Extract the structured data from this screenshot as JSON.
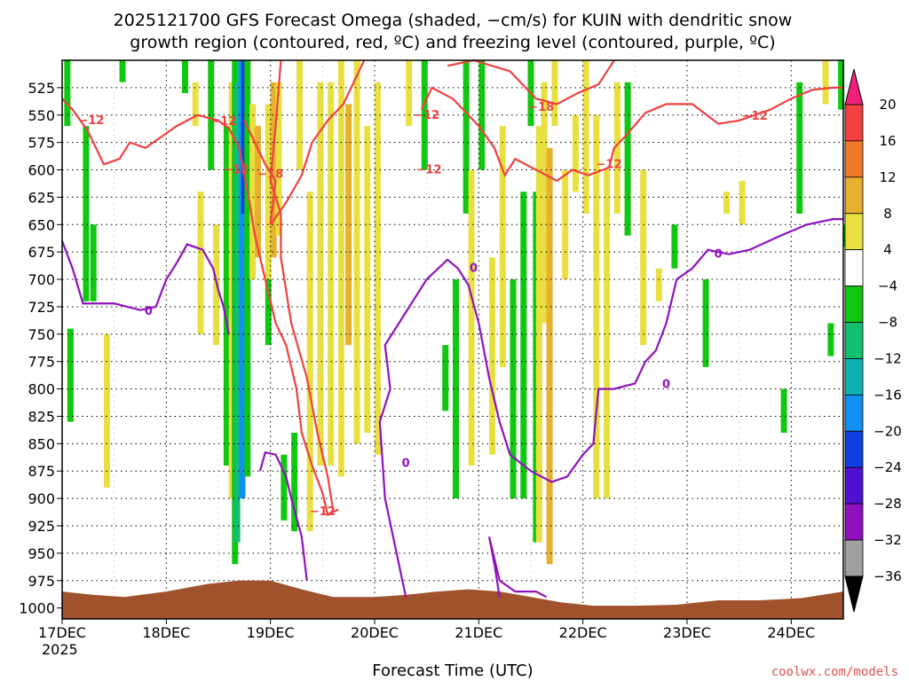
{
  "chart_data": {
    "type": "heatmap",
    "title_line1": "2025121700 GFS Forecast Omega (shaded, −cm/s) for KUIN with dendritic snow",
    "title_line2": "growth region (contoured, red, ºC) and freezing level (contoured, purple, ºC)",
    "xlabel": "Forecast Time (UTC)",
    "credit": "coolwx.com/models",
    "x_ticks": [
      "17DEC",
      "18DEC",
      "19DEC",
      "20DEC",
      "21DEC",
      "22DEC",
      "23DEC",
      "24DEC"
    ],
    "x_year": "2025",
    "y_ticks": [
      525,
      550,
      575,
      600,
      625,
      650,
      675,
      700,
      725,
      750,
      775,
      800,
      825,
      850,
      875,
      900,
      925,
      950,
      975,
      1000
    ],
    "y_range_hpa": [
      500,
      1010
    ],
    "x_range_days": [
      0,
      7.5
    ],
    "grid": true,
    "colorbar": {
      "labels": [
        "20",
        "16",
        "12",
        "8",
        "4",
        "−4",
        "−8",
        "−12",
        "−16",
        "−20",
        "−24",
        "−28",
        "−32",
        "−36"
      ],
      "colors": [
        "#f0207a",
        "#f04040",
        "#f07a28",
        "#e8b030",
        "#e8e040",
        "#ffffff",
        "#10c810",
        "#10c070",
        "#10b0b0",
        "#1090f0",
        "#1040e0",
        "#5010d0",
        "#9010c0",
        "#a0a0a0",
        "#000000"
      ]
    },
    "contour_labels": [
      {
        "text": "−12",
        "color": "#f04040",
        "x": 0.28,
        "p": 555
      },
      {
        "text": "−12",
        "color": "#f04040",
        "x": 1.55,
        "p": 556
      },
      {
        "text": "−18",
        "color": "#f04040",
        "x": 2.0,
        "p": 604
      },
      {
        "text": "−12",
        "color": "#f04040",
        "x": 1.67,
        "p": 600
      },
      {
        "text": "−12",
        "color": "#f04040",
        "x": 3.52,
        "p": 600
      },
      {
        "text": "−12",
        "color": "#f04040",
        "x": 2.5,
        "p": 912
      },
      {
        "text": "−12",
        "color": "#f04040",
        "x": 3.5,
        "p": 550
      },
      {
        "text": "−18",
        "color": "#f04040",
        "x": 4.6,
        "p": 543
      },
      {
        "text": "−12",
        "color": "#f04040",
        "x": 5.25,
        "p": 595
      },
      {
        "text": "−12",
        "color": "#f04040",
        "x": 6.65,
        "p": 551
      },
      {
        "text": "0",
        "color": "#9010c0",
        "x": 0.83,
        "p": 729
      },
      {
        "text": "0",
        "color": "#9010c0",
        "x": 3.95,
        "p": 690
      },
      {
        "text": "0",
        "color": "#9010c0",
        "x": 3.3,
        "p": 868
      },
      {
        "text": "0",
        "color": "#9010c0",
        "x": 5.8,
        "p": 796
      },
      {
        "text": "0",
        "color": "#9010c0",
        "x": 6.3,
        "p": 677
      }
    ],
    "freezing_level": [
      [
        0,
        665
      ],
      [
        0.1,
        690
      ],
      [
        0.2,
        722
      ],
      [
        0.5,
        722
      ],
      [
        0.75,
        728
      ],
      [
        0.9,
        725
      ],
      [
        1.0,
        700
      ],
      [
        1.1,
        685
      ],
      [
        1.2,
        668
      ],
      [
        1.35,
        673
      ],
      [
        1.45,
        690
      ],
      [
        1.5,
        710
      ],
      [
        1.55,
        725
      ],
      [
        1.6,
        750
      ]
    ],
    "freezing_level_2": [
      [
        1.9,
        875
      ],
      [
        1.95,
        858
      ],
      [
        2.05,
        860
      ],
      [
        2.15,
        880
      ],
      [
        2.2,
        900
      ],
      [
        2.3,
        935
      ],
      [
        2.35,
        975
      ]
    ],
    "freezing_level_3": [
      [
        3.3,
        990
      ],
      [
        3.2,
        945
      ],
      [
        3.1,
        900
      ],
      [
        3.05,
        830
      ],
      [
        3.15,
        800
      ],
      [
        3.1,
        760
      ],
      [
        3.3,
        730
      ],
      [
        3.5,
        700
      ],
      [
        3.7,
        682
      ],
      [
        3.8,
        690
      ],
      [
        3.9,
        705
      ],
      [
        4.0,
        740
      ],
      [
        4.1,
        790
      ],
      [
        4.2,
        830
      ],
      [
        4.3,
        860
      ],
      [
        4.5,
        875
      ],
      [
        4.7,
        885
      ],
      [
        4.85,
        880
      ],
      [
        5.0,
        860
      ],
      [
        5.1,
        850
      ],
      [
        5.15,
        800
      ],
      [
        5.3,
        800
      ],
      [
        5.5,
        795
      ],
      [
        5.6,
        775
      ],
      [
        5.7,
        765
      ],
      [
        5.8,
        740
      ],
      [
        5.9,
        700
      ],
      [
        6.05,
        690
      ],
      [
        6.2,
        673
      ],
      [
        6.4,
        677
      ],
      [
        6.6,
        673
      ],
      [
        6.9,
        660
      ],
      [
        7.15,
        650
      ],
      [
        7.4,
        645
      ],
      [
        7.5,
        645
      ]
    ],
    "freezing_level_4": [
      [
        4.2,
        990
      ],
      [
        4.15,
        960
      ],
      [
        4.1,
        935
      ],
      [
        4.2,
        975
      ],
      [
        4.35,
        985
      ],
      [
        4.55,
        985
      ],
      [
        4.65,
        990
      ]
    ],
    "dgz_contour_1": [
      [
        0,
        535
      ],
      [
        0.1,
        545
      ],
      [
        0.25,
        565
      ],
      [
        0.4,
        595
      ],
      [
        0.55,
        590
      ],
      [
        0.65,
        575
      ],
      [
        0.8,
        580
      ],
      [
        0.95,
        570
      ],
      [
        1.1,
        560
      ],
      [
        1.3,
        550
      ],
      [
        1.5,
        555
      ],
      [
        1.6,
        562
      ],
      [
        1.7,
        580
      ],
      [
        1.8,
        630
      ],
      [
        1.85,
        660
      ],
      [
        1.95,
        700
      ],
      [
        2.05,
        740
      ],
      [
        2.15,
        760
      ],
      [
        2.25,
        800
      ],
      [
        2.3,
        840
      ],
      [
        2.4,
        870
      ],
      [
        2.5,
        895
      ],
      [
        2.55,
        915
      ],
      [
        2.65,
        910
      ]
    ],
    "dgz_contour_2": [
      [
        1.75,
        555
      ],
      [
        1.85,
        575
      ],
      [
        1.95,
        595
      ],
      [
        2.05,
        610
      ],
      [
        2.0,
        650
      ],
      [
        2.15,
        630
      ],
      [
        2.3,
        605
      ],
      [
        2.4,
        575
      ],
      [
        2.55,
        555
      ],
      [
        2.7,
        540
      ],
      [
        2.8,
        520
      ],
      [
        2.9,
        500
      ]
    ],
    "dgz_contour_3": [
      [
        2.1,
        500
      ],
      [
        2.05,
        560
      ],
      [
        2.0,
        610
      ],
      [
        2.1,
        640
      ],
      [
        2.1,
        680
      ],
      [
        2.2,
        740
      ],
      [
        2.35,
        790
      ],
      [
        2.45,
        840
      ],
      [
        2.55,
        880
      ],
      [
        2.6,
        910
      ]
    ],
    "dgz_contour_4": [
      [
        3.45,
        545
      ],
      [
        3.55,
        525
      ],
      [
        3.75,
        535
      ],
      [
        4.0,
        560
      ],
      [
        4.15,
        580
      ],
      [
        4.25,
        605
      ],
      [
        4.35,
        590
      ],
      [
        4.55,
        600
      ],
      [
        4.75,
        610
      ],
      [
        4.9,
        600
      ],
      [
        5.05,
        605
      ],
      [
        5.25,
        598
      ],
      [
        5.3,
        580
      ],
      [
        5.4,
        570
      ],
      [
        5.6,
        548
      ],
      [
        5.8,
        540
      ],
      [
        6.05,
        540
      ],
      [
        6.3,
        558
      ],
      [
        6.5,
        555
      ],
      [
        6.8,
        545
      ],
      [
        7.0,
        535
      ],
      [
        7.2,
        527
      ],
      [
        7.4,
        525
      ],
      [
        7.5,
        525
      ]
    ],
    "dgz_contour_5": [
      [
        3.7,
        505
      ],
      [
        3.95,
        500
      ],
      [
        4.3,
        510
      ],
      [
        4.55,
        535
      ],
      [
        4.75,
        540
      ],
      [
        4.95,
        530
      ],
      [
        5.15,
        522
      ],
      [
        5.3,
        500
      ]
    ]
  }
}
